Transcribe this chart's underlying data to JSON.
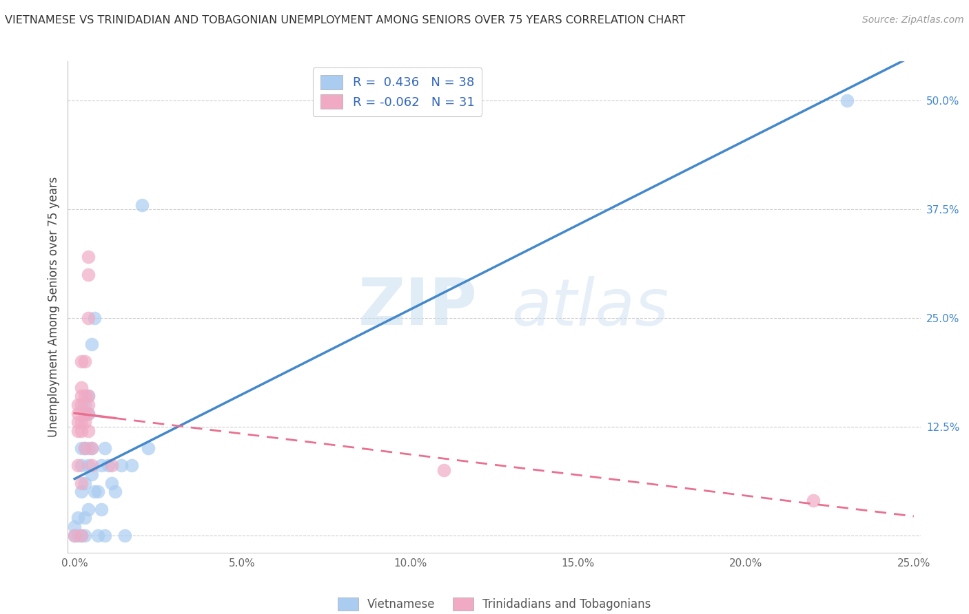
{
  "title": "VIETNAMESE VS TRINIDADIAN AND TOBAGONIAN UNEMPLOYMENT AMONG SENIORS OVER 75 YEARS CORRELATION CHART",
  "source": "Source: ZipAtlas.com",
  "ylabel": "Unemployment Among Seniors over 75 years",
  "xlim": [
    -0.002,
    0.252
  ],
  "ylim": [
    -0.02,
    0.545
  ],
  "xticks": [
    0.0,
    0.05,
    0.1,
    0.15,
    0.2,
    0.25
  ],
  "xticklabels": [
    "0.0%",
    "5.0%",
    "10.0%",
    "15.0%",
    "20.0%",
    "25.0%"
  ],
  "yticks": [
    0.0,
    0.125,
    0.25,
    0.375,
    0.5
  ],
  "yticklabels": [
    "",
    "12.5%",
    "25.0%",
    "37.5%",
    "50.0%"
  ],
  "vietnamese_color": "#aaccf0",
  "trinidadian_color": "#f0aac4",
  "vietnamese_line_color": "#4488cc",
  "trinidadian_line_color": "#e87090",
  "R_vietnamese": 0.436,
  "N_vietnamese": 38,
  "R_trinidadian": -0.062,
  "N_trinidadian": 31,
  "watermark_zip": "ZIP",
  "watermark_atlas": "atlas",
  "legend_label_vietnamese": "Vietnamese",
  "legend_label_trinidadian": "Trinidadians and Tobagonians",
  "vietnamese_scatter": [
    [
      0.0,
      0.0
    ],
    [
      0.0,
      0.01
    ],
    [
      0.001,
      0.0
    ],
    [
      0.001,
      0.02
    ],
    [
      0.002,
      0.0
    ],
    [
      0.002,
      0.05
    ],
    [
      0.002,
      0.08
    ],
    [
      0.002,
      0.1
    ],
    [
      0.003,
      0.0
    ],
    [
      0.003,
      0.02
    ],
    [
      0.003,
      0.06
    ],
    [
      0.003,
      0.1
    ],
    [
      0.003,
      0.15
    ],
    [
      0.004,
      0.03
    ],
    [
      0.004,
      0.08
    ],
    [
      0.004,
      0.1
    ],
    [
      0.004,
      0.14
    ],
    [
      0.004,
      0.16
    ],
    [
      0.005,
      0.07
    ],
    [
      0.005,
      0.1
    ],
    [
      0.005,
      0.22
    ],
    [
      0.006,
      0.05
    ],
    [
      0.006,
      0.25
    ],
    [
      0.007,
      0.0
    ],
    [
      0.007,
      0.05
    ],
    [
      0.008,
      0.03
    ],
    [
      0.008,
      0.08
    ],
    [
      0.009,
      0.0
    ],
    [
      0.009,
      0.1
    ],
    [
      0.01,
      0.08
    ],
    [
      0.011,
      0.06
    ],
    [
      0.012,
      0.05
    ],
    [
      0.014,
      0.08
    ],
    [
      0.015,
      0.0
    ],
    [
      0.017,
      0.08
    ],
    [
      0.02,
      0.38
    ],
    [
      0.022,
      0.1
    ],
    [
      0.23,
      0.5
    ]
  ],
  "trinidadian_scatter": [
    [
      0.0,
      0.0
    ],
    [
      0.001,
      0.08
    ],
    [
      0.001,
      0.12
    ],
    [
      0.001,
      0.13
    ],
    [
      0.001,
      0.14
    ],
    [
      0.001,
      0.15
    ],
    [
      0.002,
      0.0
    ],
    [
      0.002,
      0.06
    ],
    [
      0.002,
      0.12
    ],
    [
      0.002,
      0.13
    ],
    [
      0.002,
      0.15
    ],
    [
      0.002,
      0.16
    ],
    [
      0.002,
      0.17
    ],
    [
      0.002,
      0.2
    ],
    [
      0.003,
      0.1
    ],
    [
      0.003,
      0.13
    ],
    [
      0.003,
      0.14
    ],
    [
      0.003,
      0.16
    ],
    [
      0.003,
      0.2
    ],
    [
      0.004,
      0.12
    ],
    [
      0.004,
      0.14
    ],
    [
      0.004,
      0.15
    ],
    [
      0.004,
      0.16
    ],
    [
      0.004,
      0.25
    ],
    [
      0.004,
      0.3
    ],
    [
      0.004,
      0.32
    ],
    [
      0.005,
      0.08
    ],
    [
      0.005,
      0.1
    ],
    [
      0.011,
      0.08
    ],
    [
      0.11,
      0.075
    ],
    [
      0.22,
      0.04
    ]
  ]
}
